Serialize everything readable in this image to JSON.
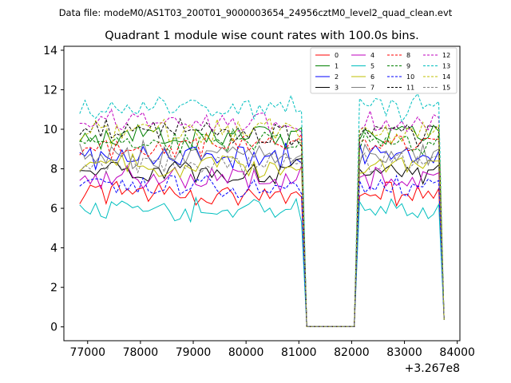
{
  "chart_data": {
    "type": "line",
    "suptitle": "Data file: modeM0/AS1T03_200T01_9000003654_24956cztM0_level2_quad_clean.evt",
    "title": "Quadrant 1 module wise count rates with 100.0s bins.",
    "xlabel": "",
    "ylabel": "",
    "x_offset_label": "+3.267e8",
    "xlim": [
      76550,
      84050
    ],
    "ylim": [
      -0.7,
      14.2
    ],
    "x_ticks": [
      77000,
      78000,
      79000,
      80000,
      81000,
      82000,
      83000,
      84000
    ],
    "x_tick_labels": [
      "77000",
      "78000",
      "79000",
      "80000",
      "81000",
      "82000",
      "83000",
      "84000"
    ],
    "y_ticks": [
      0,
      2,
      4,
      6,
      8,
      10,
      12,
      14
    ],
    "y_tick_labels": [
      "0",
      "2",
      "4",
      "6",
      "8",
      "10",
      "12",
      "14"
    ],
    "legend_position": "top-right",
    "legend_columns": 4,
    "series": [
      {
        "name": "0",
        "color": "#ff0000",
        "dash": "solid",
        "base": 6.7
      },
      {
        "name": "1",
        "color": "#008000",
        "dash": "solid",
        "base": 9.6
      },
      {
        "name": "2",
        "color": "#0000ff",
        "dash": "solid",
        "base": 8.6
      },
      {
        "name": "3",
        "color": "#000000",
        "dash": "solid",
        "base": 7.9
      },
      {
        "name": "4",
        "color": "#bf00bf",
        "dash": "solid",
        "base": 7.5
      },
      {
        "name": "5",
        "color": "#00bfbf",
        "dash": "solid",
        "base": 5.9
      },
      {
        "name": "6",
        "color": "#bfbf00",
        "dash": "solid",
        "base": 8.1
      },
      {
        "name": "7",
        "color": "#808080",
        "dash": "solid",
        "base": 8.7
      },
      {
        "name": "8",
        "color": "#ff0000",
        "dash": "dashed",
        "base": 9.2
      },
      {
        "name": "9",
        "color": "#008000",
        "dash": "dashed",
        "base": 9.4
      },
      {
        "name": "10",
        "color": "#0000ff",
        "dash": "dashed",
        "base": 7.1
      },
      {
        "name": "11",
        "color": "#000000",
        "dash": "dashed",
        "base": 9.8
      },
      {
        "name": "12",
        "color": "#bf00bf",
        "dash": "dashed",
        "base": 10.3
      },
      {
        "name": "13",
        "color": "#00bfbf",
        "dash": "dashed",
        "base": 11.1
      },
      {
        "name": "14",
        "color": "#bfbf00",
        "dash": "dashed",
        "base": 9.9
      },
      {
        "name": "15",
        "color": "#808080",
        "dash": "dashed",
        "base": 8.3
      }
    ],
    "x_start": 76850,
    "x_step": 100,
    "n_points": 70,
    "dip_x": 80200,
    "dip_value": 6.4,
    "gap_range": [
      81100,
      82100
    ],
    "recovery_x": 82300,
    "end_x": 83750,
    "end_value": 0.35
  }
}
